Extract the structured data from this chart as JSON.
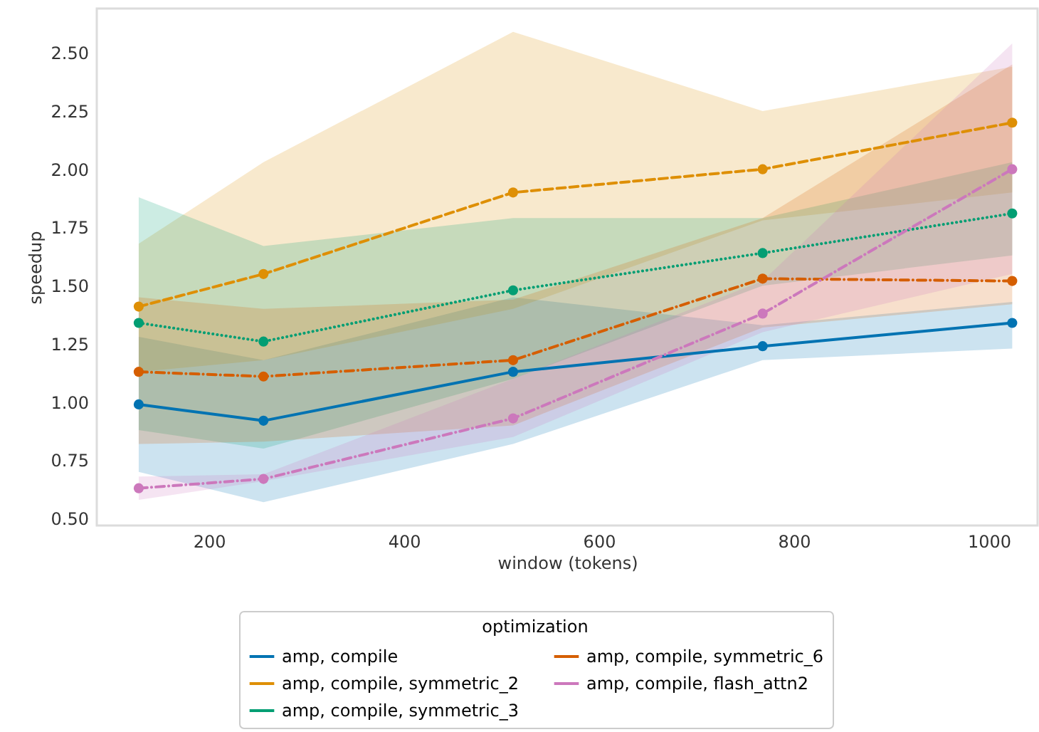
{
  "chart_data": {
    "type": "line",
    "xlabel": "window (tokens)",
    "ylabel": "speedup",
    "legend_title": "optimization",
    "x": [
      128,
      256,
      512,
      768,
      1024
    ],
    "series": [
      {
        "name": "amp, compile",
        "color": "#0173b2",
        "line_style": "solid",
        "values": [
          0.99,
          0.92,
          1.13,
          1.24,
          1.34
        ],
        "lower": [
          0.7,
          0.57,
          0.82,
          1.18,
          1.23
        ],
        "upper": [
          1.28,
          1.18,
          1.45,
          1.33,
          1.43
        ]
      },
      {
        "name": "amp, compile, symmetric_2",
        "color": "#de8f05",
        "line_style": "dashed",
        "values": [
          1.41,
          1.55,
          1.9,
          2.0,
          2.2
        ],
        "lower": [
          1.13,
          1.18,
          1.4,
          1.78,
          1.9
        ],
        "upper": [
          1.68,
          2.03,
          2.59,
          2.25,
          2.44
        ]
      },
      {
        "name": "amp, compile, symmetric_3",
        "color": "#029e73",
        "line_style": "dotted",
        "values": [
          1.34,
          1.26,
          1.48,
          1.64,
          1.81
        ],
        "lower": [
          0.88,
          0.8,
          1.1,
          1.5,
          1.63
        ],
        "upper": [
          1.88,
          1.67,
          1.79,
          1.79,
          2.03
        ]
      },
      {
        "name": "amp, compile, symmetric_6",
        "color": "#d55e00",
        "line_style": "dashdot",
        "values": [
          1.13,
          1.11,
          1.18,
          1.53,
          1.52
        ],
        "lower": [
          0.82,
          0.83,
          0.9,
          1.32,
          1.42
        ],
        "upper": [
          1.45,
          1.4,
          1.44,
          1.79,
          2.45
        ]
      },
      {
        "name": "amp, compile, flash_attn2",
        "color": "#cc78bc",
        "line_style": "dashdot",
        "values": [
          0.63,
          0.67,
          0.93,
          1.38,
          2.0
        ],
        "lower": [
          0.58,
          0.66,
          0.85,
          1.3,
          1.55
        ],
        "upper": [
          0.68,
          0.69,
          1.1,
          1.52,
          2.54
        ]
      }
    ],
    "xlim": [
      85,
      1050
    ],
    "xticks": [
      200,
      400,
      600,
      800,
      1000
    ],
    "ylim": [
      0.47,
      2.69
    ],
    "yticks": [
      {
        "value": 0.5,
        "label": "0.50"
      },
      {
        "value": 0.75,
        "label": "0.75"
      },
      {
        "value": 1.0,
        "label": "1.00"
      },
      {
        "value": 1.25,
        "label": "1.25"
      },
      {
        "value": 1.5,
        "label": "1.50"
      },
      {
        "value": 1.75,
        "label": "1.75"
      },
      {
        "value": 2.0,
        "label": "2.00"
      },
      {
        "value": 2.25,
        "label": "2.25"
      },
      {
        "value": 2.5,
        "label": "2.50"
      }
    ],
    "grid": false,
    "legend": "bottom",
    "marker": "circle"
  }
}
